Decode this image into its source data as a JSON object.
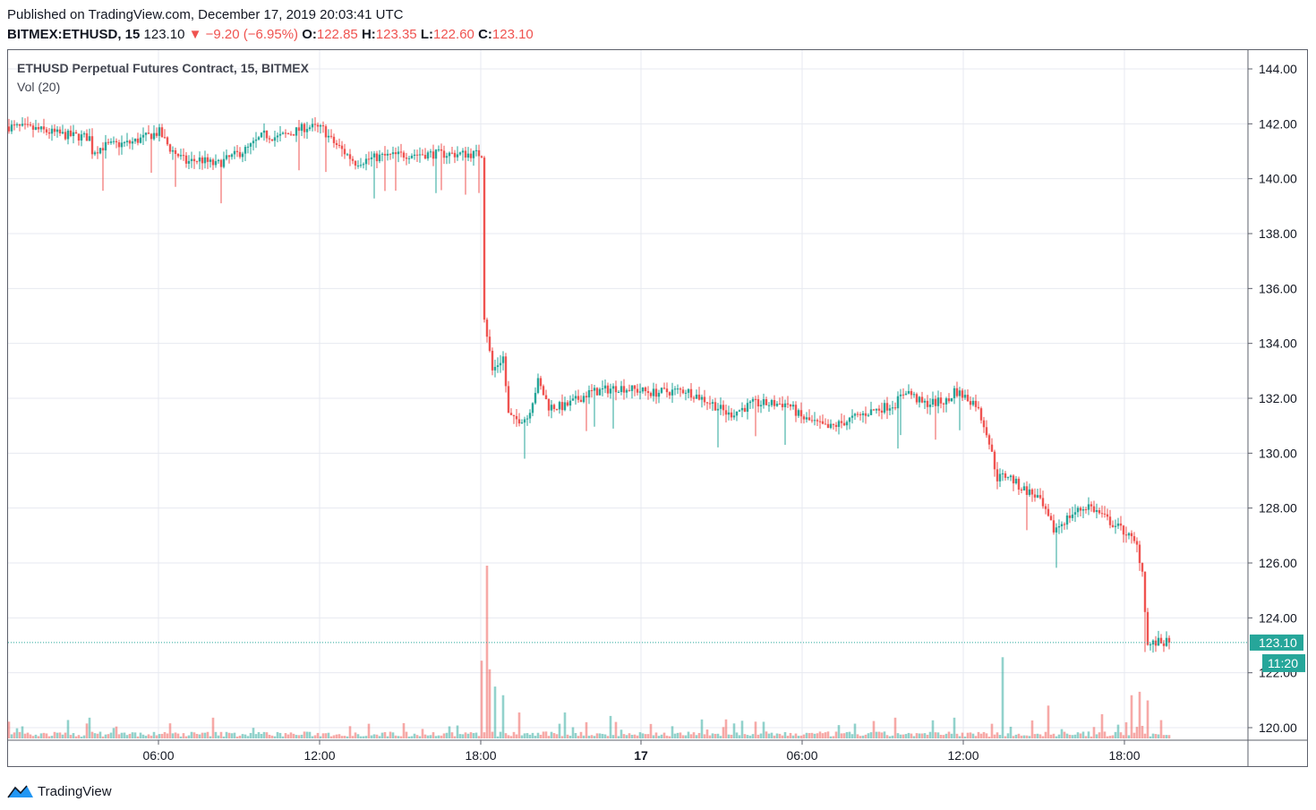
{
  "header": {
    "published": "Published on TradingView.com, December 17, 2019 20:03:41 UTC",
    "symbol": "BITMEX:ETHUSD, 15",
    "last": "123.10",
    "change": "−9.20 (−6.95%)",
    "open_label": "O:",
    "open": "122.85",
    "high_label": "H:",
    "high": "123.35",
    "low_label": "L:",
    "low": "122.60",
    "close_label": "C:",
    "close": "123.10"
  },
  "legend": {
    "title": "ETHUSD Perpetual Futures Contract, 15, BITMEX",
    "volume": "Vol (20)"
  },
  "footer": {
    "brand": "TradingView"
  },
  "colors": {
    "up": "#26a69a",
    "down": "#ef5350",
    "grid": "#e7eaf0",
    "axis": "#131722"
  },
  "chart_data": {
    "type": "candlestick",
    "x_ticks": [
      "06:00",
      "12:00",
      "18:00",
      "17",
      "06:00",
      "12:00",
      "18:00"
    ],
    "y_ticks": [
      "120.00",
      "122.00",
      "124.00",
      "126.00",
      "128.00",
      "130.00",
      "132.00",
      "134.00",
      "136.00",
      "138.00",
      "140.00",
      "142.00",
      "144.00"
    ],
    "ylim": [
      119.5,
      144.5
    ],
    "last_price_label": "123.10",
    "countdown_label": "11:20",
    "close_path": [
      [
        0,
        141.9
      ],
      [
        10,
        141.8
      ],
      [
        20,
        141.6
      ],
      [
        30,
        141.5
      ],
      [
        31,
        141.0
      ],
      [
        36,
        141.2
      ],
      [
        45,
        141.3
      ],
      [
        56,
        141.7
      ],
      [
        60,
        141.1
      ],
      [
        66,
        140.6
      ],
      [
        71,
        140.7
      ],
      [
        77,
        140.5
      ],
      [
        83,
        140.8
      ],
      [
        89,
        141.1
      ],
      [
        95,
        141.6
      ],
      [
        100,
        141.5
      ],
      [
        106,
        141.7
      ],
      [
        111,
        141.9
      ],
      [
        117,
        141.8
      ],
      [
        120,
        141.4
      ],
      [
        129,
        140.6
      ],
      [
        138,
        140.8
      ],
      [
        150,
        140.9
      ],
      [
        165,
        140.9
      ],
      [
        176,
        140.9
      ],
      [
        177,
        135.0
      ],
      [
        180,
        133.0
      ],
      [
        184,
        133.5
      ],
      [
        186,
        131.4
      ],
      [
        188,
        131.2
      ],
      [
        193,
        131.3
      ],
      [
        197,
        132.6
      ],
      [
        201,
        131.7
      ],
      [
        207,
        131.7
      ],
      [
        216,
        132.2
      ],
      [
        227,
        132.4
      ],
      [
        240,
        132.2
      ],
      [
        252,
        132.3
      ],
      [
        262,
        131.8
      ],
      [
        268,
        131.4
      ],
      [
        277,
        131.8
      ],
      [
        290,
        131.8
      ],
      [
        295,
        131.3
      ],
      [
        305,
        130.9
      ],
      [
        315,
        131.3
      ],
      [
        320,
        131.5
      ],
      [
        330,
        131.8
      ],
      [
        334,
        132.3
      ],
      [
        340,
        131.8
      ],
      [
        350,
        131.9
      ],
      [
        352,
        132.3
      ],
      [
        360,
        131.8
      ],
      [
        364,
        130.8
      ],
      [
        368,
        129.1
      ],
      [
        372,
        129.2
      ],
      [
        376,
        128.8
      ],
      [
        383,
        128.4
      ],
      [
        389,
        127.2
      ],
      [
        396,
        127.8
      ],
      [
        402,
        128.1
      ],
      [
        410,
        127.5
      ],
      [
        416,
        127.1
      ],
      [
        420,
        126.6
      ],
      [
        422,
        125.7
      ],
      [
        424,
        123.0
      ],
      [
        428,
        123.1
      ]
    ],
    "volume_spikes": [
      [
        30,
        0.12
      ],
      [
        76,
        0.12
      ],
      [
        176,
        0.45
      ],
      [
        178,
        1.0
      ],
      [
        179,
        0.4
      ],
      [
        181,
        0.3
      ],
      [
        184,
        0.25
      ],
      [
        190,
        0.15
      ],
      [
        207,
        0.15
      ],
      [
        224,
        0.13
      ],
      [
        267,
        0.11
      ],
      [
        330,
        0.12
      ],
      [
        352,
        0.12
      ],
      [
        370,
        0.47
      ],
      [
        387,
        0.19
      ],
      [
        407,
        0.14
      ],
      [
        418,
        0.25
      ],
      [
        421,
        0.27
      ],
      [
        424,
        0.22
      ]
    ]
  }
}
